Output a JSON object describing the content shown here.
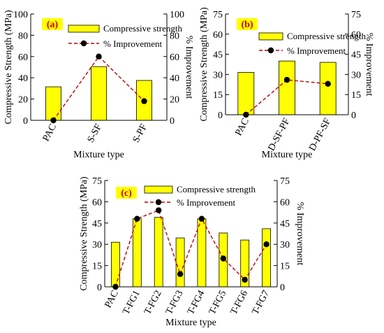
{
  "chart_data": [
    {
      "type": "bar",
      "panel_label": "(a)",
      "categories": [
        "PAC",
        "S-SF",
        "S-PF"
      ],
      "series": [
        {
          "name": "Compressive strength",
          "type": "bar",
          "axis": "left",
          "values": [
            31.5,
            50.5,
            37.5
          ]
        },
        {
          "name": "% Improvement",
          "type": "line",
          "axis": "right",
          "values": [
            0,
            60,
            18
          ]
        }
      ],
      "xlabel": "Mixture type",
      "ylabel": "Compressive Strength (MPa)",
      "y2label": "% Improvement",
      "ylim": [
        0,
        100
      ],
      "y2lim": [
        0,
        100
      ],
      "yticks": [
        "0",
        "20",
        "40",
        "60",
        "80",
        "100"
      ],
      "y2ticks": [
        "0",
        "20",
        "40",
        "60",
        "80",
        "100"
      ],
      "legend_position": "top-right"
    },
    {
      "type": "bar",
      "panel_label": "(b)",
      "categories": [
        "PAC",
        "D-SF-PF",
        "D-PF-SF"
      ],
      "series": [
        {
          "name": "Compressive strength",
          "type": "bar",
          "axis": "left",
          "values": [
            31.5,
            40,
            39
          ]
        },
        {
          "name": "% Improvement",
          "type": "line",
          "axis": "right",
          "values": [
            0,
            26,
            23
          ]
        }
      ],
      "xlabel": "Mixture type",
      "ylabel": "Compressive Strength (MPa)",
      "y2label": "% Improvement",
      "ylim": [
        0,
        75
      ],
      "y2lim": [
        0,
        75
      ],
      "yticks": [
        "0",
        "15",
        "30",
        "45",
        "60",
        "75"
      ],
      "y2ticks": [
        "0",
        "15",
        "30",
        "45",
        "60",
        "75"
      ],
      "legend_position": "top-right"
    },
    {
      "type": "bar",
      "panel_label": "(c)",
      "categories": [
        "PAC",
        "T-FG1",
        "T-FG2",
        "T-FG3",
        "T-FG4",
        "T-FG5",
        "T-FG6",
        "T-FG7"
      ],
      "series": [
        {
          "name": "Compressive strength",
          "type": "bar",
          "axis": "left",
          "values": [
            31.5,
            48,
            49,
            34.5,
            48,
            38,
            33,
            41
          ]
        },
        {
          "name": "% Improvement",
          "type": "line",
          "axis": "right",
          "values": [
            0,
            48,
            54,
            9,
            48,
            20,
            5,
            30
          ]
        }
      ],
      "xlabel": "Mixture type",
      "ylabel": "Compressive Strength (MPa)",
      "y2label": "% Improvement",
      "ylim": [
        0,
        75
      ],
      "y2lim": [
        0,
        75
      ],
      "yticks": [
        "0",
        "15",
        "30",
        "45",
        "60",
        "75"
      ],
      "y2ticks": [
        "0",
        "15",
        "30",
        "45",
        "60",
        "75"
      ],
      "legend_position": "top"
    }
  ],
  "colors": {
    "bar_fill": "#ffff00",
    "bar_stroke": "#000000",
    "line": "#c00000",
    "marker": "#000000",
    "badge_fill": "#ffff00",
    "badge_text": "#cc0000"
  }
}
